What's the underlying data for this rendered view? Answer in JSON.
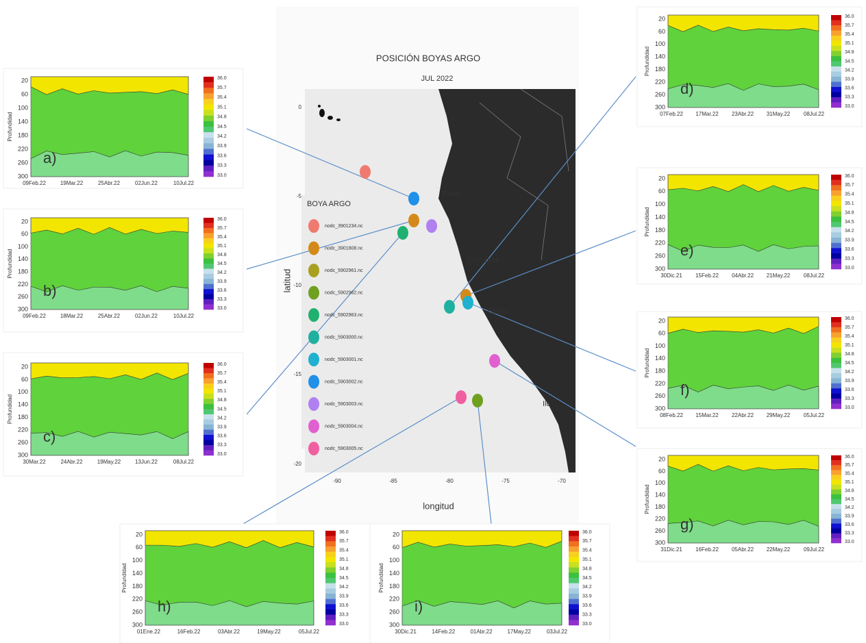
{
  "map": {
    "title": "POSICIÓN BOYAS ARGO",
    "subtitle": "JUL 2022",
    "x_label": "longitud",
    "y_label": "latitud",
    "x_ticks": [
      "-90",
      "-85",
      "-80",
      "-75",
      "-70"
    ],
    "y_ticks": [
      "0",
      "-5",
      "-10",
      "-15",
      "-20"
    ],
    "places": [
      "Paita",
      "Chimbote",
      "Callao",
      "Ilo"
    ],
    "legend": {
      "title": "BOYA ARGO",
      "entries": [
        "nodc_3901234.nc",
        "nodc_3901808.nc",
        "nodc_5902961.nc",
        "nodc_5902962.nc",
        "nodc_5902963.nc",
        "nodc_5903000.nc",
        "nodc_5903001.nc",
        "nodc_5903002.nc",
        "nodc_5903003.nc",
        "nodc_5903004.nc",
        "nodc_5903005.nc"
      ]
    }
  },
  "panels": [
    {
      "label": "a)",
      "y_label": "Profundidad",
      "y_ticks": [
        "20",
        "60",
        "100",
        "140",
        "180",
        "220",
        "260",
        "300"
      ],
      "x_ticks": [
        "09Feb.22",
        "19Mar.22",
        "25Abr.22",
        "02Jun.22",
        "10Jul.22"
      ],
      "colorbar_ticks": [
        "36.0",
        "35.7",
        "35.4",
        "35.1",
        "34.8",
        "34.5",
        "34.2",
        "33.9",
        "33.6",
        "33.3",
        "33.0"
      ]
    },
    {
      "label": "b)",
      "y_label": "Profundidad",
      "y_ticks": [
        "20",
        "60",
        "100",
        "140",
        "180",
        "220",
        "260",
        "300"
      ],
      "x_ticks": [
        "09Feb.22",
        "18Mar.22",
        "25Abr.22",
        "02Jun.22",
        "10Jul.22"
      ],
      "colorbar_ticks": [
        "36.0",
        "35.7",
        "35.4",
        "35.1",
        "34.8",
        "34.5",
        "34.2",
        "33.9",
        "33.6",
        "33.3",
        "33.0"
      ]
    },
    {
      "label": "c)",
      "y_label": "Profundidad",
      "y_ticks": [
        "20",
        "60",
        "100",
        "140",
        "180",
        "220",
        "260",
        "300"
      ],
      "x_ticks": [
        "30Mar.22",
        "24Abr.22",
        "19May.22",
        "13Jun.22",
        "08Jul.22"
      ],
      "colorbar_ticks": [
        "36.0",
        "35.7",
        "35.4",
        "35.1",
        "34.8",
        "34.5",
        "34.2",
        "33.9",
        "33.6",
        "33.3",
        "33.0"
      ]
    },
    {
      "label": "d)",
      "y_label": "Profundidad",
      "y_ticks": [
        "20",
        "60",
        "100",
        "140",
        "180",
        "220",
        "260",
        "300"
      ],
      "x_ticks": [
        "07Feb.22",
        "17Mar.22",
        "23Abr.22",
        "31May.22",
        "08Jul.22"
      ],
      "colorbar_ticks": [
        "36.0",
        "35.7",
        "35.4",
        "35.1",
        "34.8",
        "34.5",
        "34.2",
        "33.9",
        "33.6",
        "33.3",
        "33.0"
      ]
    },
    {
      "label": "e)",
      "y_label": "Profundidad",
      "y_ticks": [
        "20",
        "60",
        "100",
        "140",
        "180",
        "220",
        "260",
        "300"
      ],
      "x_ticks": [
        "30Dic.21",
        "15Feb.22",
        "04Abr.22",
        "21May.22",
        "08Jul.22"
      ],
      "colorbar_ticks": [
        "36.0",
        "35.7",
        "35.4",
        "35.1",
        "34.8",
        "34.5",
        "34.2",
        "33.9",
        "33.6",
        "33.3",
        "33.0"
      ]
    },
    {
      "label": "f)",
      "y_label": "Profundidad",
      "y_ticks": [
        "20",
        "60",
        "100",
        "140",
        "180",
        "220",
        "260",
        "300"
      ],
      "x_ticks": [
        "08Feb.22",
        "15Mar.22",
        "22Abr.22",
        "29May.22",
        "05Jul.22"
      ],
      "colorbar_ticks": [
        "36.0",
        "35.7",
        "35.4",
        "35.1",
        "34.8",
        "34.5",
        "34.2",
        "33.9",
        "33.6",
        "33.3",
        "33.0"
      ]
    },
    {
      "label": "g)",
      "y_label": "Profundidad",
      "y_ticks": [
        "20",
        "60",
        "100",
        "140",
        "180",
        "220",
        "260",
        "300"
      ],
      "x_ticks": [
        "31Dic.21",
        "16Feb.22",
        "05Abr.22",
        "22May.22",
        "09Jul.22"
      ],
      "colorbar_ticks": [
        "36.0",
        "35.7",
        "35.4",
        "35.1",
        "34.8",
        "34.5",
        "34.2",
        "33.9",
        "33.6",
        "33.3",
        "33.0"
      ]
    },
    {
      "label": "h)",
      "y_label": "Profundidad",
      "y_ticks": [
        "20",
        "60",
        "100",
        "140",
        "180",
        "220",
        "260",
        "300"
      ],
      "x_ticks": [
        "01Ene.22",
        "16Feb.22",
        "03Abr.22",
        "19May.22",
        "05Jul.22"
      ],
      "colorbar_ticks": [
        "36.0",
        "35.7",
        "35.4",
        "35.1",
        "34.8",
        "34.5",
        "34.2",
        "33.9",
        "33.6",
        "33.3",
        "33.0"
      ]
    },
    {
      "label": "i)",
      "y_label": "Profundidad",
      "y_ticks": [
        "20",
        "60",
        "100",
        "140",
        "180",
        "220",
        "260",
        "300"
      ],
      "x_ticks": [
        "30Dic.21",
        "14Feb.22",
        "01Abr.22",
        "17May.22",
        "03Jul.22"
      ],
      "colorbar_ticks": [
        "36.0",
        "35.7",
        "35.4",
        "35.1",
        "34.8",
        "34.5",
        "34.2",
        "33.9",
        "33.6",
        "33.3",
        "33.0"
      ]
    }
  ]
}
